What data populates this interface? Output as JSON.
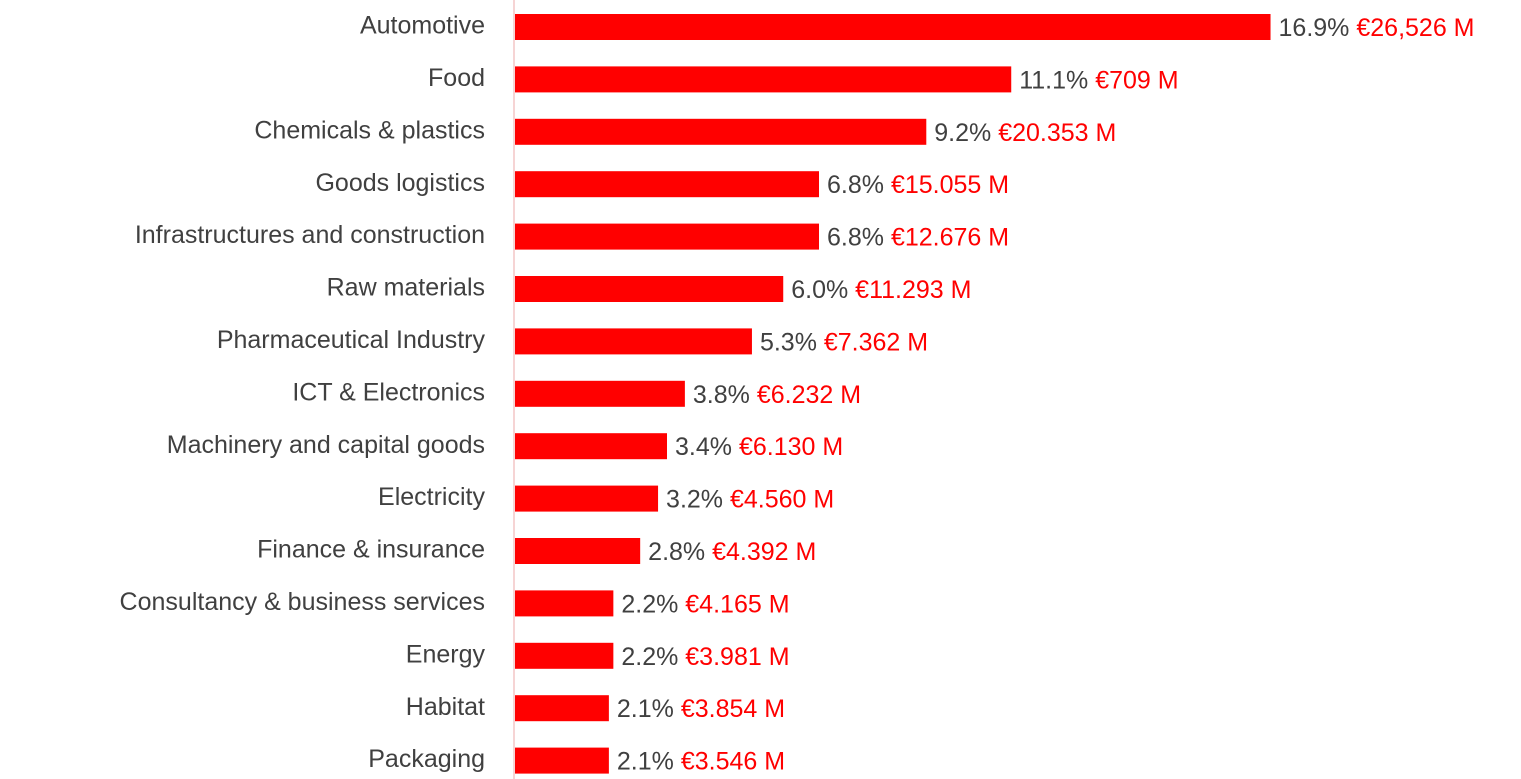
{
  "chart_data": {
    "type": "barh",
    "categories": [
      "Automotive",
      "Food",
      "Chemicals & plastics",
      "Goods logistics",
      "Infrastructures and construction",
      "Raw materials",
      "Pharmaceutical Industry",
      "ICT & Electronics",
      "Machinery and capital goods",
      "Electricity",
      "Finance & insurance",
      "Consultancy & business services",
      "Energy",
      "Habitat",
      "Packaging"
    ],
    "values": [
      16.9,
      11.1,
      9.2,
      6.8,
      6.8,
      6.0,
      5.3,
      3.8,
      3.4,
      3.2,
      2.8,
      2.2,
      2.2,
      2.1,
      2.1
    ],
    "value_labels": [
      "16.9%",
      "11.1%",
      "9.2%",
      "6.8%",
      "6.8%",
      "6.0%",
      "5.3%",
      "3.8%",
      "3.4%",
      "3.2%",
      "2.8%",
      "2.2%",
      "2.2%",
      "2.1%",
      "2.1%"
    ],
    "amount_labels": [
      "€26,526 M",
      "€709 M",
      "€20.353 M",
      "€15.055 M",
      "€12.676 M",
      "€11.293 M",
      "€7.362 M",
      "€6.232 M",
      "€6.130 M",
      "€4.560 M",
      "€4.392 M",
      "€4.165 M",
      "€3.981 M",
      "€3.854 M",
      "€3.546 M"
    ],
    "color": "#ff0000",
    "xlim": [
      0,
      17
    ],
    "grid": false
  }
}
